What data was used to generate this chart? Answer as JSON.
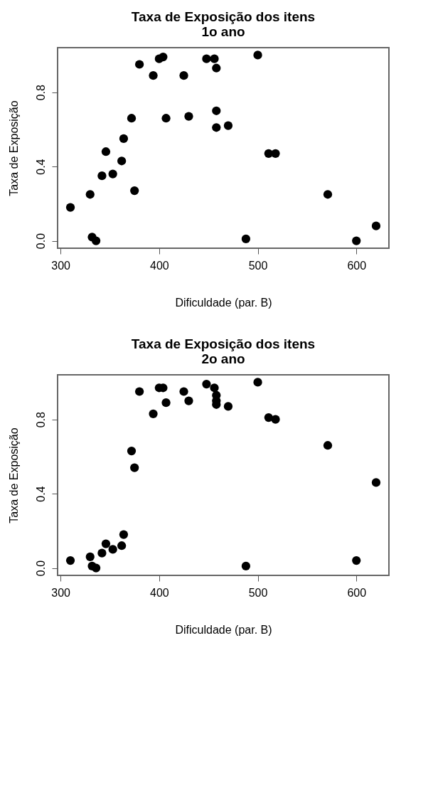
{
  "chart_data": [
    {
      "type": "scatter",
      "title": "Taxa de Exposição dos itens\n1o ano",
      "xlabel": "Dificuldade (par. B)",
      "ylabel": "Taxa de Exposição",
      "xlim": [
        297,
        633
      ],
      "ylim": [
        -0.04,
        1.04
      ],
      "xticks": [
        300,
        400,
        500,
        600
      ],
      "yticks": [
        {
          "value": 0,
          "label": "0.0"
        },
        {
          "value": 0.4,
          "label": "0.4"
        },
        {
          "value": 0.8,
          "label": "0.8"
        }
      ],
      "grid": false,
      "marker": "circle",
      "series": [
        {
          "color": "#000000",
          "x": [
            310,
            330,
            332,
            336,
            342,
            346,
            353,
            362,
            364,
            372,
            375,
            380,
            394,
            400,
            404,
            407,
            425,
            430,
            448,
            456,
            458,
            458,
            458,
            470,
            488,
            500,
            511,
            518,
            571,
            600,
            620
          ],
          "values": [
            0.18,
            0.25,
            0.02,
            0.0,
            0.35,
            0.48,
            0.36,
            0.43,
            0.55,
            0.66,
            0.27,
            0.95,
            0.89,
            0.98,
            0.99,
            0.66,
            0.89,
            0.67,
            0.98,
            0.98,
            0.93,
            0.7,
            0.61,
            0.62,
            0.01,
            1.0,
            0.47,
            0.47,
            0.25,
            0.0,
            0.08
          ]
        }
      ]
    },
    {
      "type": "scatter",
      "title": "Taxa de Exposição dos itens\n2o ano",
      "xlabel": "Dificuldade (par. B)",
      "ylabel": "Taxa de Exposição",
      "xlim": [
        297,
        633
      ],
      "ylim": [
        -0.04,
        1.04
      ],
      "xticks": [
        300,
        400,
        500,
        600
      ],
      "yticks": [
        {
          "value": 0,
          "label": "0.0"
        },
        {
          "value": 0.4,
          "label": "0.4"
        },
        {
          "value": 0.8,
          "label": "0.8"
        }
      ],
      "grid": false,
      "marker": "circle",
      "series": [
        {
          "color": "#000000",
          "x": [
            310,
            330,
            332,
            336,
            342,
            346,
            353,
            362,
            364,
            372,
            375,
            380,
            394,
            400,
            404,
            407,
            425,
            430,
            448,
            456,
            458,
            458,
            458,
            470,
            488,
            500,
            511,
            518,
            571,
            600,
            620
          ],
          "values": [
            0.04,
            0.06,
            0.01,
            0.0,
            0.08,
            0.13,
            0.1,
            0.12,
            0.18,
            0.63,
            0.54,
            0.95,
            0.83,
            0.97,
            0.97,
            0.89,
            0.95,
            0.9,
            0.99,
            0.97,
            0.93,
            0.9,
            0.88,
            0.87,
            0.01,
            1.0,
            0.81,
            0.8,
            0.66,
            0.04,
            0.46
          ]
        }
      ]
    }
  ]
}
